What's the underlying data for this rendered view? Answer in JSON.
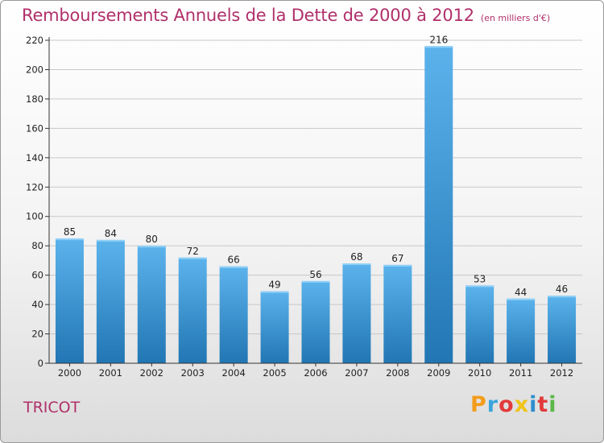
{
  "header": {
    "title": "Remboursements Annuels de la Dette de 2000 à 2012",
    "unit": "(en milliers d'€)"
  },
  "footer": {
    "commune": "TRICOT",
    "logo": {
      "letters": [
        "P",
        "r",
        "o",
        "x",
        "i",
        "t",
        "i"
      ],
      "colors": [
        "#f39c1a",
        "#3aa5dc",
        "#e23a3a",
        "#f0c419",
        "#2e8ecf",
        "#e23a3a",
        "#5ab849"
      ]
    }
  },
  "colors": {
    "bar_top": "#5cb3ec",
    "bar_bottom": "#2176b3",
    "title": "#b0306a",
    "axis": "#333333",
    "grid": "#c8c8c8"
  },
  "chart_data": {
    "type": "bar",
    "title": "Remboursements Annuels de la Dette de 2000 à 2012",
    "subtitle": "(en milliers d'€)",
    "xlabel": "",
    "ylabel": "",
    "categories": [
      "2000",
      "2001",
      "2002",
      "2003",
      "2004",
      "2005",
      "2006",
      "2007",
      "2008",
      "2009",
      "2010",
      "2011",
      "2012"
    ],
    "values": [
      85,
      84,
      80,
      72,
      66,
      49,
      56,
      68,
      67,
      216,
      53,
      44,
      46
    ],
    "ylim": [
      0,
      220
    ],
    "yticks": [
      0,
      20,
      40,
      60,
      80,
      100,
      120,
      140,
      160,
      180,
      200,
      220
    ],
    "grid": true,
    "legend": "none"
  }
}
